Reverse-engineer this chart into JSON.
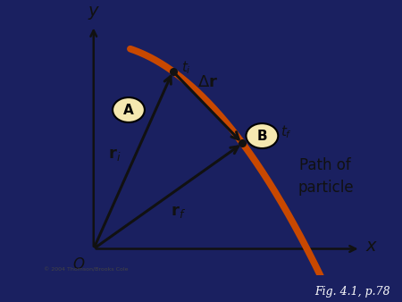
{
  "panel_bg": "#f5e8b0",
  "path_color": "#c84800",
  "arrow_color": "#111111",
  "text_color": "#111111",
  "caption": "Fig. 4.1, p.78",
  "path_of_particle": "Path of\nparticle",
  "copyright": "© 2004 Thomson/Brooks Cole",
  "outer_bg_top": "#1a1a4a",
  "outer_bg_bot": "#2a3a7a",
  "ox": 0.16,
  "oy": 0.1,
  "t_i": 0.22,
  "t_f": 0.58
}
